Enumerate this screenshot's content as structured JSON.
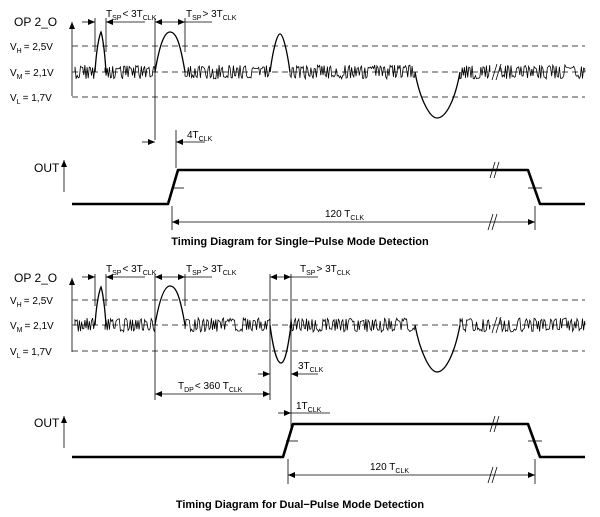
{
  "diagram1": {
    "signal_in": "OP 2_O",
    "vh": "V",
    "vh_sub": "H",
    "vh_value": "= 2,5V",
    "vm": "V",
    "vm_sub": "M",
    "vm_value": "= 2,1V",
    "vl": "V",
    "vl_sub": "L",
    "vl_value": "= 1,7V",
    "tsp_lt": "T",
    "tsp_lt_sub": "SP",
    "tsp_lt_rel": "< 3T",
    "tsp_lt_sub2": "CLK",
    "tsp_gt": "T",
    "tsp_gt_sub": "SP",
    "tsp_gt_rel": "> 3T",
    "tsp_gt_sub2": "CLK",
    "delay": "4T",
    "delay_sub": "CLK",
    "signal_out": "OUT",
    "duration": "120 T",
    "duration_sub": "CLK",
    "caption": "Timing Diagram for Single−Pulse Mode Detection"
  },
  "diagram2": {
    "signal_in": "OP 2_O",
    "vh": "V",
    "vh_sub": "H",
    "vh_value": "= 2,5V",
    "vm": "V",
    "vm_sub": "M",
    "vm_value": "= 2,1V",
    "vl": "V",
    "vl_sub": "L",
    "vl_value": "= 1,7V",
    "tsp_lt": "T",
    "tsp_lt_sub": "SP",
    "tsp_lt_rel": "< 3T",
    "tsp_lt_sub2": "CLK",
    "tsp_gt": "T",
    "tsp_gt_sub": "SP",
    "tsp_gt_rel": "> 3T",
    "tsp_gt_sub2": "CLK",
    "tsp_gt2": "T",
    "tsp_gt2_sub": "SP",
    "tsp_gt2_rel": "> 3T",
    "tsp_gt2_sub2": "CLK",
    "tdp": "T",
    "tdp_sub": "DP",
    "tdp_rel": "< 360 T",
    "tdp_sub2": "CLK",
    "delay": "3T",
    "delay_sub": "CLK",
    "delay2": "1T",
    "delay2_sub": "CLK",
    "signal_out": "OUT",
    "duration": "120 T",
    "duration_sub": "CLK",
    "caption": "Timing Diagram for Dual−Pulse Mode Detection"
  }
}
